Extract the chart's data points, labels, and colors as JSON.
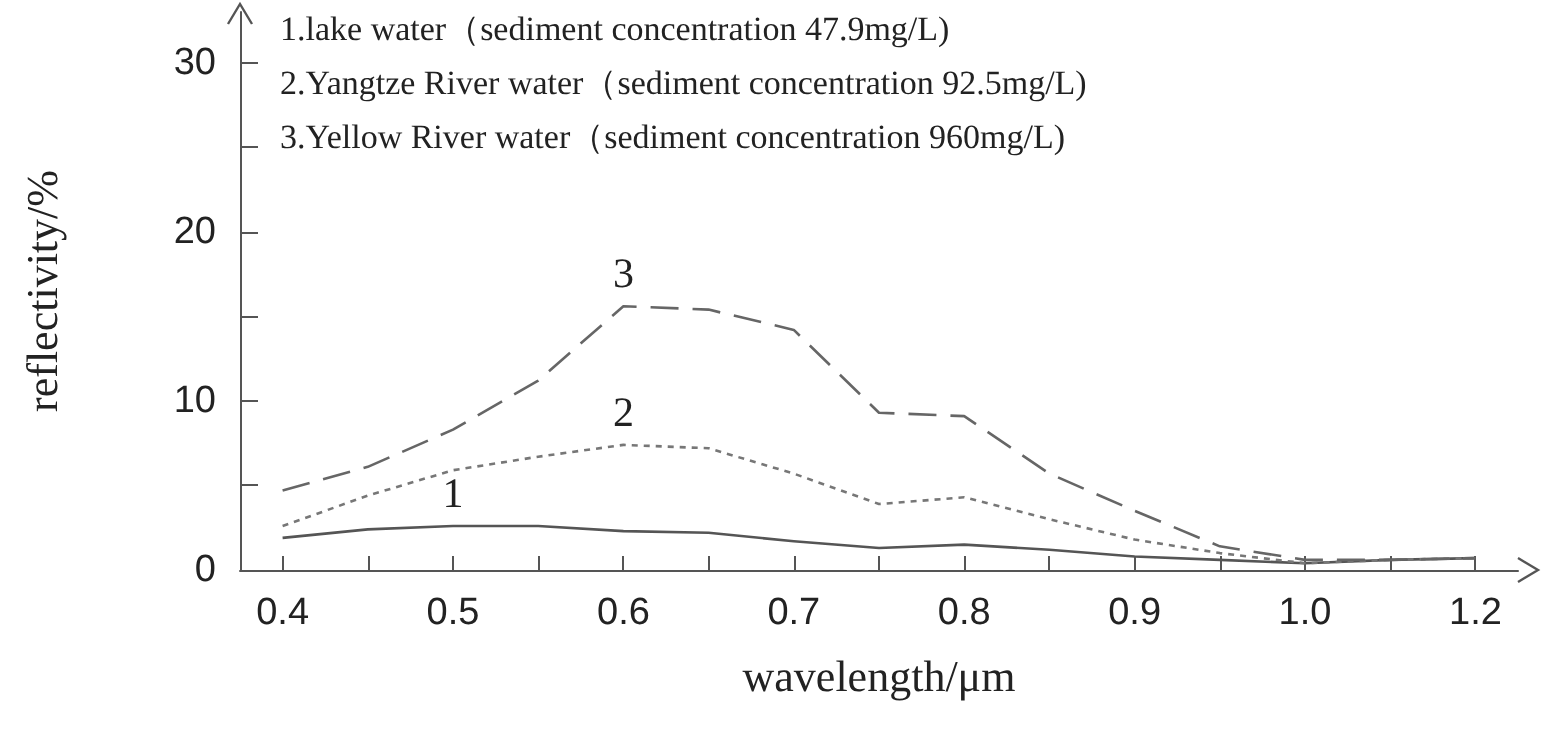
{
  "chart_data": {
    "type": "line",
    "xlabel": "wavelength/μm",
    "ylabel": "reflectivity/%",
    "categories": [
      "0.4",
      null,
      "0.5",
      null,
      "0.6",
      null,
      "0.7",
      null,
      "0.8",
      null,
      "0.9",
      null,
      "1.0",
      null,
      "1.2"
    ],
    "series": [
      {
        "name": "1",
        "color": "#555555",
        "line_style": "solid",
        "values": [
          1.9,
          2.4,
          2.6,
          2.6,
          2.3,
          2.2,
          1.7,
          1.3,
          1.5,
          1.2,
          0.8,
          0.6,
          0.4,
          0.6,
          0.7
        ]
      },
      {
        "name": "2",
        "color": "#777777",
        "line_style": "dotted",
        "values": [
          2.6,
          4.4,
          5.9,
          6.7,
          7.4,
          7.2,
          5.7,
          3.9,
          4.3,
          3.0,
          1.8,
          1.0,
          0.4,
          0.6,
          0.7
        ]
      },
      {
        "name": "3",
        "color": "#666666",
        "line_style": "dashed",
        "values": [
          4.7,
          6.1,
          8.3,
          11.2,
          15.6,
          15.4,
          14.2,
          9.3,
          9.1,
          5.7,
          3.5,
          1.4,
          0.6,
          0.6,
          0.7
        ]
      }
    ],
    "ylim": [
      0,
      33
    ],
    "yticks": [
      0,
      {
        "value": 5,
        "label": null
      },
      10,
      {
        "value": 15,
        "label": null
      },
      20,
      {
        "value": 25,
        "label": null
      },
      30
    ],
    "grid": false,
    "marker": "none",
    "annotations": [
      "1.lake water（sediment concentration 47.9mg/L)",
      "2.Yangtze River water（sediment concentration 92.5mg/L)",
      "3.Yellow River water（sediment concentration 960mg/L)"
    ]
  }
}
